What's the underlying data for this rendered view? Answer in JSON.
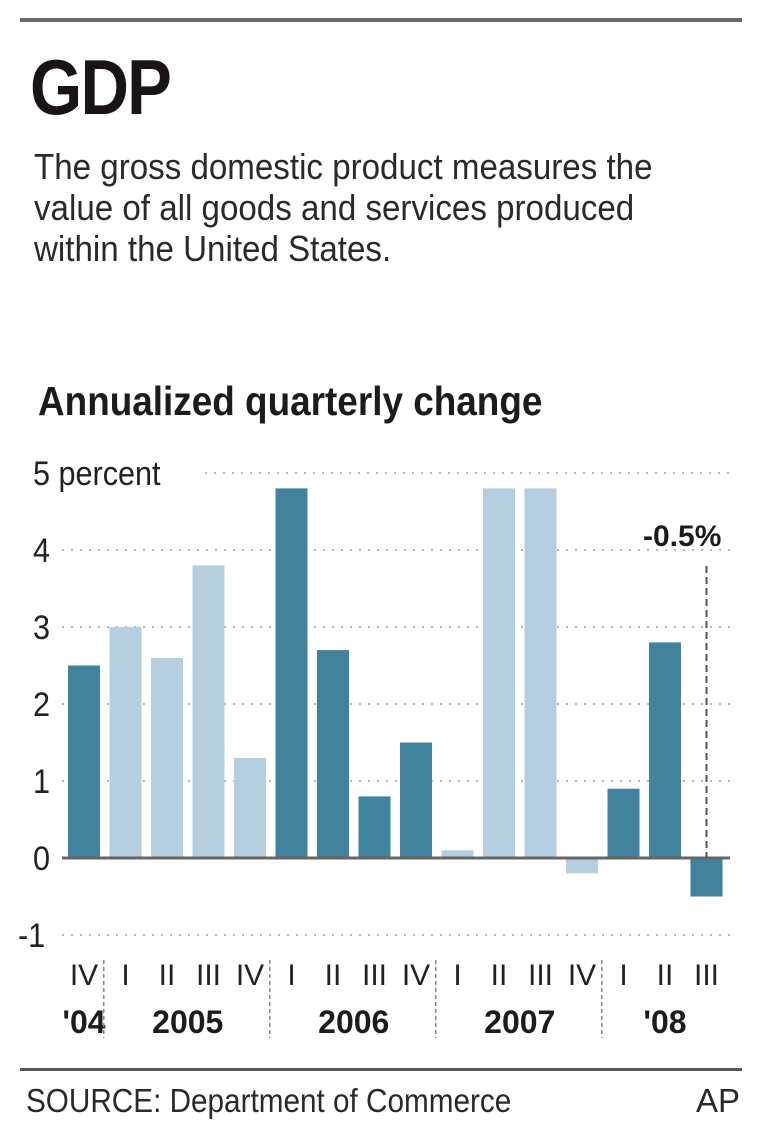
{
  "header": {
    "title": "GDP",
    "description": "The gross domestic product measures the value of all goods and services produced within the United States.",
    "subtitle": "Annualized quarterly change"
  },
  "footer": {
    "source": "SOURCE: Department of Commerce",
    "credit": "AP"
  },
  "colors": {
    "dark_bar": "#41829c",
    "light_bar": "#b5cfe0",
    "gridline": "#b8b8b8",
    "baseline": "#666666",
    "text": "#222222"
  },
  "chart_data": {
    "type": "bar",
    "title": "Annualized quarterly change",
    "ylabel": "percent",
    "ylim": [
      -1,
      5
    ],
    "yticks": [
      5,
      4,
      3,
      2,
      1,
      0,
      -1
    ],
    "ytick_labels": [
      "5 percent",
      "4",
      "3",
      "2",
      "1",
      "0",
      "-1"
    ],
    "grid": true,
    "categories": [
      "IV",
      "I",
      "II",
      "III",
      "IV",
      "I",
      "II",
      "III",
      "IV",
      "I",
      "II",
      "III",
      "IV",
      "I",
      "II",
      "III"
    ],
    "years": [
      "2004",
      "2005",
      "2005",
      "2005",
      "2005",
      "2006",
      "2006",
      "2006",
      "2006",
      "2007",
      "2007",
      "2007",
      "2007",
      "2008",
      "2008",
      "2008"
    ],
    "values": [
      2.5,
      3.0,
      2.6,
      3.8,
      1.3,
      4.8,
      2.7,
      0.8,
      1.5,
      0.1,
      4.8,
      4.8,
      -0.2,
      0.9,
      2.8,
      -0.5
    ],
    "shade": [
      "dark",
      "light",
      "light",
      "light",
      "light",
      "dark",
      "dark",
      "dark",
      "dark",
      "light",
      "light",
      "light",
      "light",
      "dark",
      "dark",
      "dark"
    ],
    "year_groups": [
      {
        "label": "'04",
        "start": 0,
        "end": 0
      },
      {
        "label": "2005",
        "start": 1,
        "end": 4
      },
      {
        "label": "2006",
        "start": 5,
        "end": 8
      },
      {
        "label": "2007",
        "start": 9,
        "end": 12
      },
      {
        "label": "'08",
        "start": 13,
        "end": 15
      }
    ],
    "annotation": {
      "text": "-0.5%",
      "index": 15
    }
  }
}
